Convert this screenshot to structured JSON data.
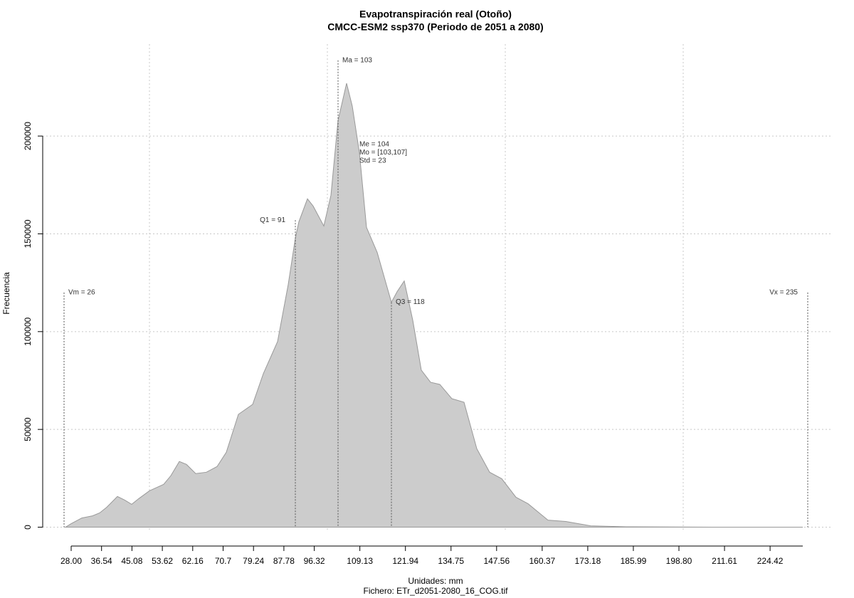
{
  "chart_data": {
    "type": "area",
    "title": "Evapotranspiración real (Otoño)",
    "subtitle": "CMCC-ESM2 ssp370 (Periodo de 2051 a 2080)",
    "xlabel": "Unidades: mm",
    "caption": "Fichero: ETr_d2051-2080_16_COG.tif",
    "ylabel": "Frecuencia",
    "x": [
      26.4,
      28,
      31,
      34,
      36,
      38,
      41,
      43,
      45,
      47,
      50,
      54,
      56,
      58.4,
      60.4,
      63,
      66,
      69,
      71.6,
      75,
      79,
      82,
      86,
      89,
      91,
      92,
      94.4,
      96,
      99,
      101,
      103,
      105.4,
      107,
      109,
      111,
      114,
      118,
      119.6,
      121.6,
      124,
      126.4,
      129,
      131.6,
      135,
      138.4,
      142,
      145.6,
      149,
      153,
      156.4,
      162,
      167,
      174,
      184,
      208,
      233.6
    ],
    "values": [
      0,
      1800,
      4700,
      5800,
      7300,
      10200,
      15700,
      13900,
      11700,
      14600,
      18600,
      21900,
      26300,
      33600,
      32100,
      27400,
      28100,
      31000,
      38300,
      57700,
      62800,
      78500,
      94900,
      124100,
      147800,
      156200,
      167900,
      164200,
      154000,
      169700,
      208000,
      227000,
      215300,
      191600,
      153300,
      140500,
      115000,
      120400,
      125900,
      105800,
      80300,
      74100,
      73000,
      65700,
      63900,
      40100,
      28100,
      24800,
      15300,
      12000,
      3600,
      2900,
      700,
      200,
      0,
      0
    ],
    "color": "#cccccc",
    "xlim": [
      20,
      242
    ],
    "ylim": [
      -6000,
      247000
    ],
    "xticks": [
      {
        "value": 28,
        "label": "28.00"
      },
      36.54,
      45.08,
      53.62,
      62.16,
      70.7,
      {
        "value": 79.24,
        "label": "79.24"
      },
      87.78,
      96.32,
      109.13,
      121.94,
      134.75,
      147.56,
      160.37,
      173.18,
      185.99,
      {
        "value": 198.8,
        "label": "198.80"
      },
      211.61,
      224.42
    ],
    "yticks": [
      0,
      50000,
      100000,
      150000,
      200000
    ],
    "xgrid": [
      50,
      100,
      150,
      200
    ],
    "grid": true,
    "markers": [
      {
        "label": "Vm = 26",
        "x": 26,
        "y": 120000
      },
      {
        "label": "Q1 = 91",
        "x": 91,
        "y": 157000
      },
      {
        "label": "Ma = 103",
        "x": 103,
        "y": 238700
      },
      {
        "label": "Q3 = 118",
        "x": 118,
        "y": 115000
      },
      {
        "label": "Vx = 235",
        "x": 235,
        "y": 120000
      }
    ],
    "stats": [
      "Me = 104",
      "Mo = [103,107]",
      "Std = 23"
    ]
  }
}
